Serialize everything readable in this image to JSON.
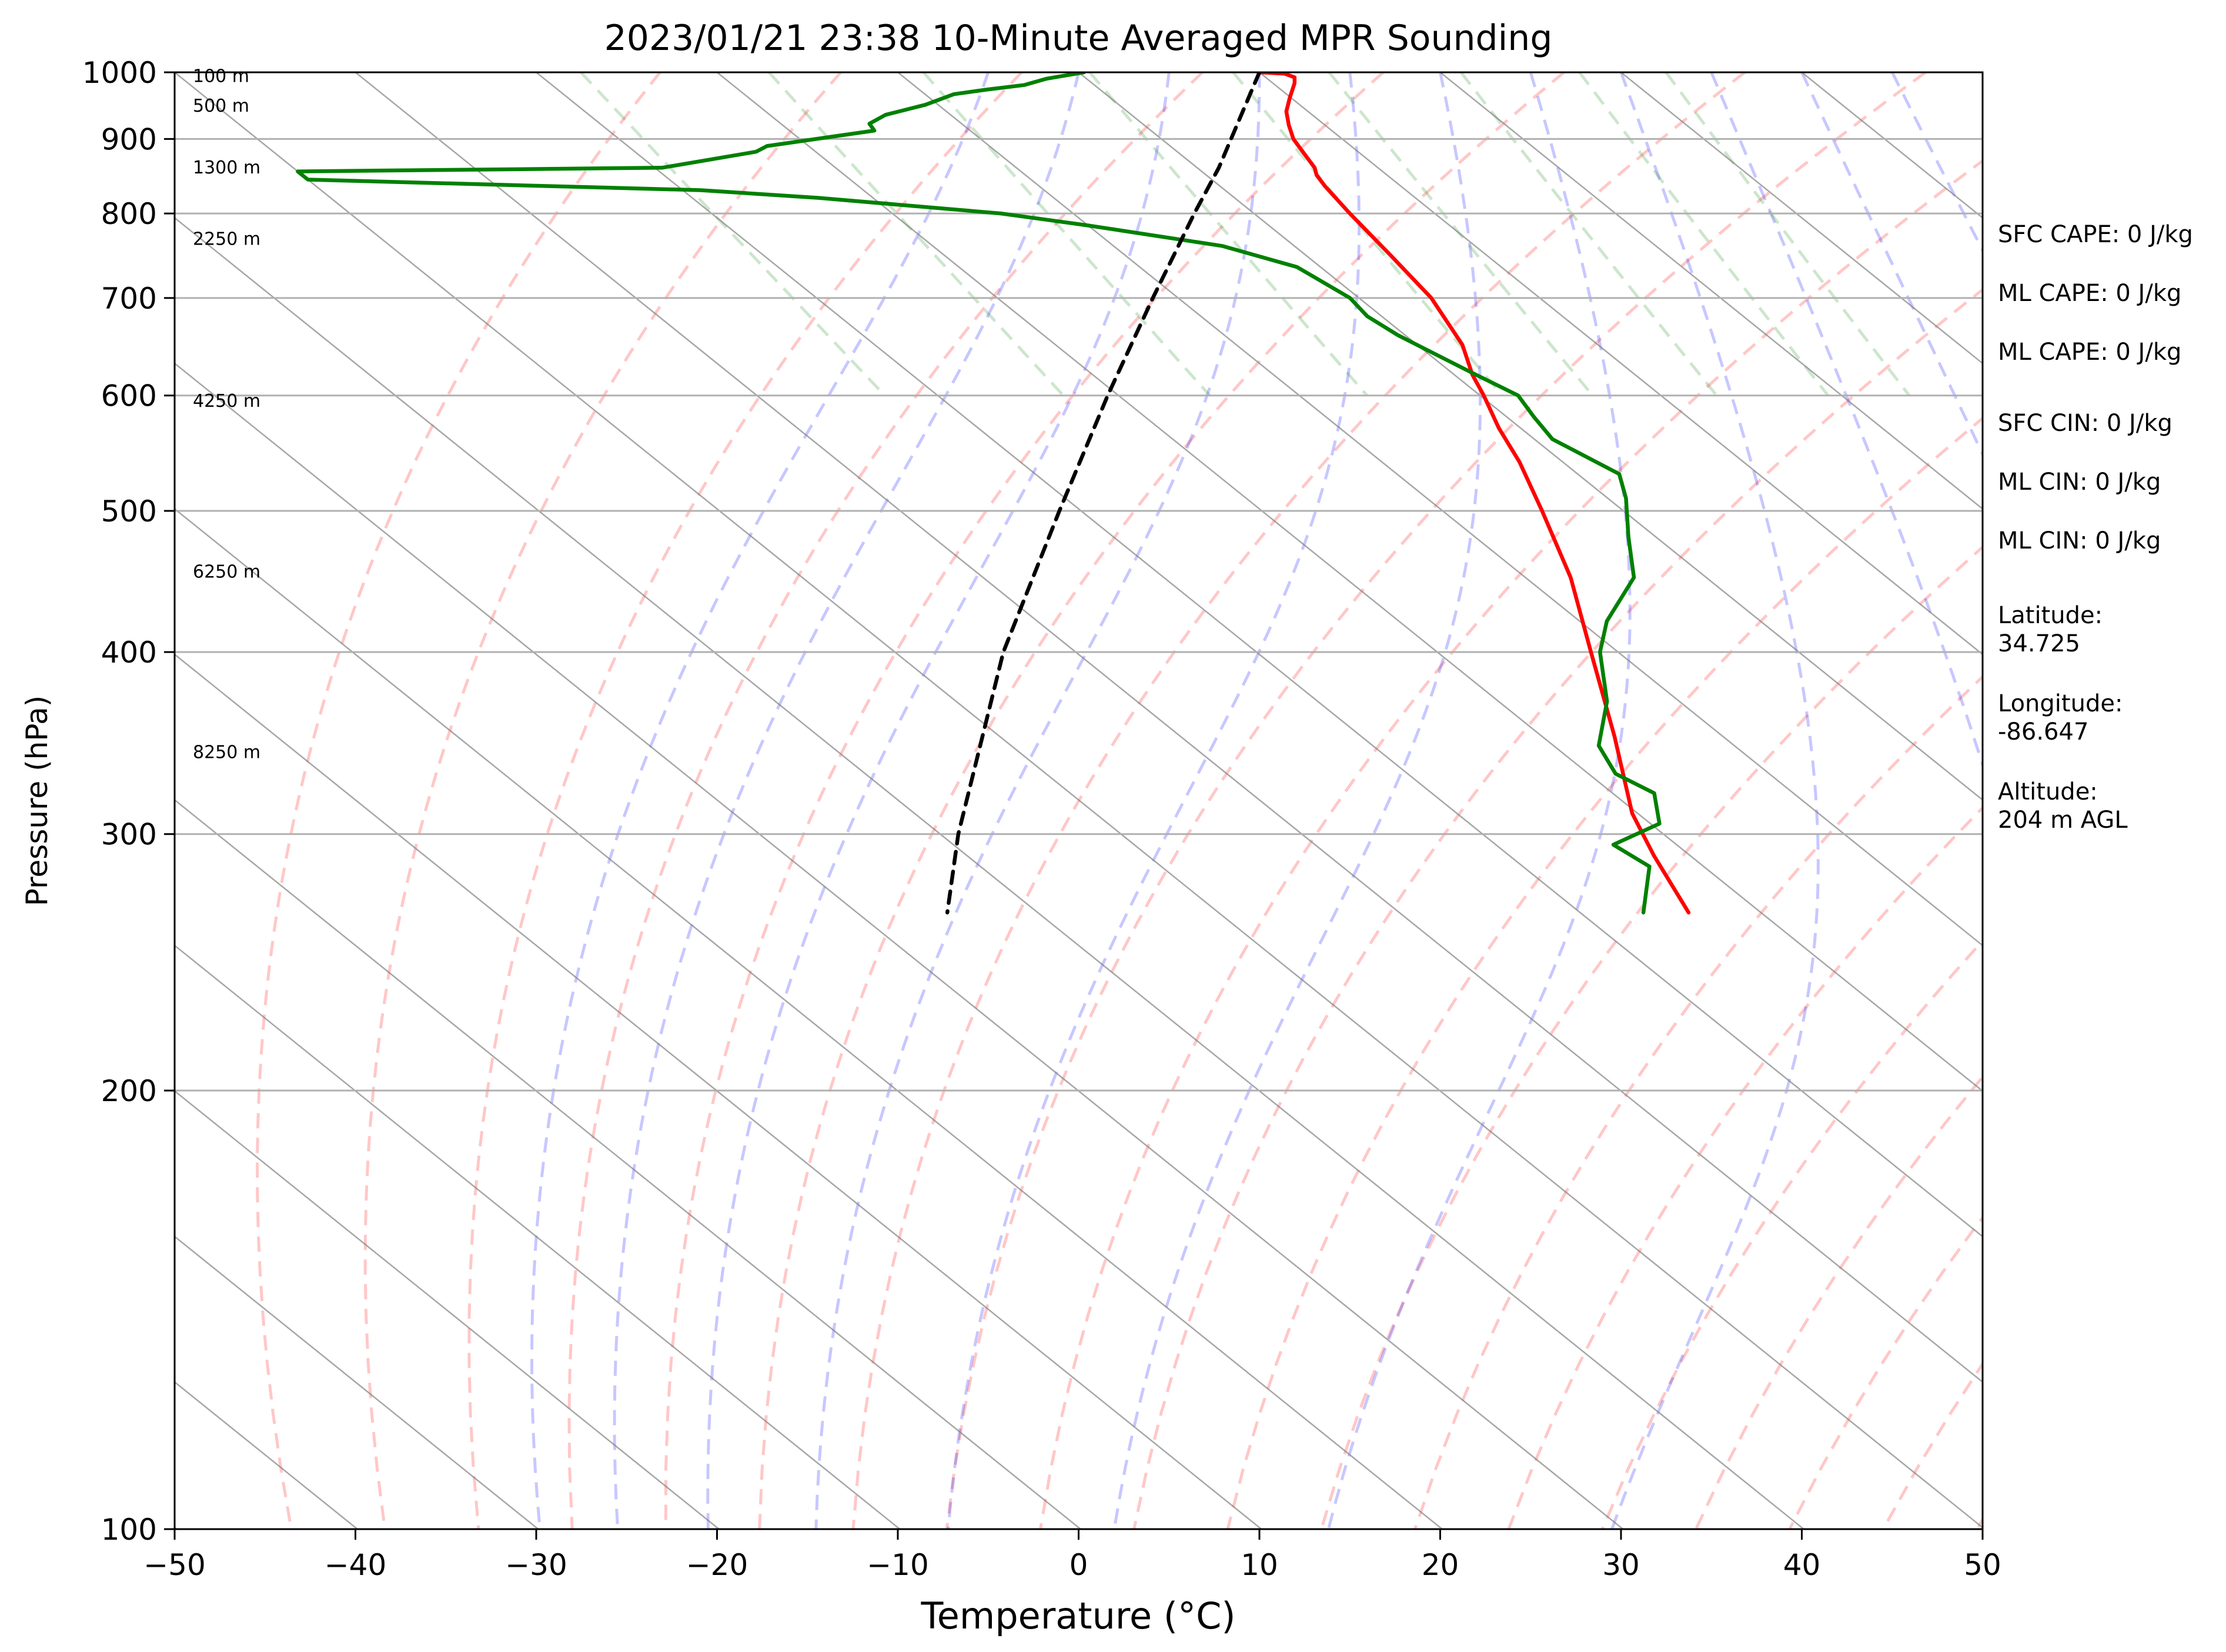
{
  "chart_data": {
    "type": "line",
    "subtype": "skew-t log-p sounding",
    "title": "2023/01/21 23:38 10-Minute Averaged MPR Sounding",
    "xlabel": "Temperature (°C)",
    "ylabel": "Pressure (hPa)",
    "xlim": [
      -50,
      50
    ],
    "ylim": [
      1000,
      100
    ],
    "yscale": "log",
    "x_ticks": [
      -50,
      -40,
      -30,
      -20,
      -10,
      0,
      10,
      20,
      30,
      40,
      50
    ],
    "x_tick_labels": [
      "−50",
      "−40",
      "−30",
      "−20",
      "−10",
      "0",
      "10",
      "20",
      "30",
      "40",
      "50"
    ],
    "y_ticks": [
      1000,
      900,
      800,
      700,
      600,
      500,
      400,
      300,
      200,
      100
    ],
    "y_tick_labels": [
      "1000",
      "900",
      "800",
      "700",
      "600",
      "500",
      "400",
      "300",
      "200",
      "100"
    ],
    "grid": true,
    "series": [
      {
        "kind": "temperature",
        "color": "#ff0000",
        "points": [
          [
            1000,
            10.0
          ],
          [
            998,
            11.3
          ],
          [
            992,
            11.6
          ],
          [
            983,
            11.2
          ],
          [
            960,
            9.9
          ],
          [
            940,
            8.8
          ],
          [
            920,
            8.0
          ],
          [
            900,
            7.3
          ],
          [
            880,
            6.9
          ],
          [
            860,
            6.5
          ],
          [
            850,
            6.1
          ],
          [
            835,
            5.8
          ],
          [
            800,
            5.3
          ],
          [
            750,
            4.7
          ],
          [
            700,
            4.0
          ],
          [
            650,
            2.5
          ],
          [
            620,
            1.0
          ],
          [
            600,
            0.2
          ],
          [
            570,
            -1.2
          ],
          [
            540,
            -2.4
          ],
          [
            500,
            -4.5
          ],
          [
            450,
            -7.5
          ],
          [
            400,
            -11.5
          ],
          [
            350,
            -16.0
          ],
          [
            310,
            -20.3
          ],
          [
            290,
            -22.0
          ],
          [
            265,
            -24.0
          ]
        ]
      },
      {
        "kind": "dewpoint",
        "color": "#008000",
        "points": [
          [
            1000,
            0.3
          ],
          [
            990,
            -2.2
          ],
          [
            980,
            -3.9
          ],
          [
            973,
            -6.3
          ],
          [
            966,
            -8.4
          ],
          [
            950,
            -10.7
          ],
          [
            935,
            -13.6
          ],
          [
            922,
            -15.1
          ],
          [
            912,
            -15.3
          ],
          [
            890,
            -22.3
          ],
          [
            882,
            -23.3
          ],
          [
            860,
            -29.6
          ],
          [
            855,
            -50.0
          ],
          [
            844,
            -50.0
          ],
          [
            830,
            -29.0
          ],
          [
            820,
            -23.0
          ],
          [
            800,
            -14.0
          ],
          [
            785,
            -10.0
          ],
          [
            760,
            -4.0
          ],
          [
            735,
            -1.3
          ],
          [
            700,
            -0.5
          ],
          [
            680,
            -0.8
          ],
          [
            660,
            -0.4
          ],
          [
            620,
            1.2
          ],
          [
            600,
            2.1
          ],
          [
            580,
            1.5
          ],
          [
            560,
            1.0
          ],
          [
            530,
            2.3
          ],
          [
            510,
            1.0
          ],
          [
            480,
            -1.5
          ],
          [
            450,
            -4.0
          ],
          [
            420,
            -8.5
          ],
          [
            400,
            -11.0
          ],
          [
            370,
            -14.0
          ],
          [
            345,
            -17.5
          ],
          [
            330,
            -18.5
          ],
          [
            320,
            -17.7
          ],
          [
            305,
            -19.5
          ],
          [
            295,
            -23.5
          ],
          [
            285,
            -23.0
          ],
          [
            265,
            -26.5
          ]
        ]
      },
      {
        "kind": "parcel",
        "color": "#000000",
        "dashed": true,
        "points": [
          [
            1000,
            10.0
          ],
          [
            860,
            1.2
          ],
          [
            800,
            -3.3
          ],
          [
            700,
            -11.4
          ],
          [
            600,
            -20.6
          ],
          [
            500,
            -31.2
          ],
          [
            400,
            -44.0
          ],
          [
            300,
            -59.0
          ],
          [
            265,
            -65.0
          ]
        ]
      }
    ],
    "reference_lines": {
      "dry_adiabats_theta_K": [
        250,
        260,
        270,
        280,
        290,
        300,
        310,
        320,
        330,
        340,
        350,
        360,
        370,
        380,
        390,
        400,
        410,
        420,
        430,
        440,
        450
      ],
      "moist_adiabats_start_C": [
        -5,
        0,
        5,
        10,
        15,
        20,
        25,
        30,
        35,
        40,
        45
      ],
      "mixing_ratio_lines_gkg": [
        0.4,
        1,
        2,
        4,
        7,
        10,
        16,
        24,
        32
      ],
      "dry_adiabat_color": "#ff0000",
      "moist_adiabat_color": "#0000ff",
      "mixing_ratio_color": "#008000"
    },
    "height_labels": [
      {
        "text": "100 m",
        "p": 996
      },
      {
        "text": "500 m",
        "p": 950
      },
      {
        "text": "1300 m",
        "p": 862
      },
      {
        "text": "2250 m",
        "p": 770
      },
      {
        "text": "4250 m",
        "p": 596
      },
      {
        "text": "6250 m",
        "p": 455
      },
      {
        "text": "8250 m",
        "p": 342
      }
    ],
    "annotations": [
      "SFC CAPE: 0 J/kg",
      "ML CAPE: 0 J/kg",
      "ML CAPE: 0 J/kg",
      "SFC CIN: 0 J/kg",
      "ML CIN: 0 J/kg",
      "ML CIN: 0 J/kg",
      "Latitude:\n34.725",
      "Longitude:\n-86.647",
      "Altitude:\n204 m AGL"
    ]
  }
}
